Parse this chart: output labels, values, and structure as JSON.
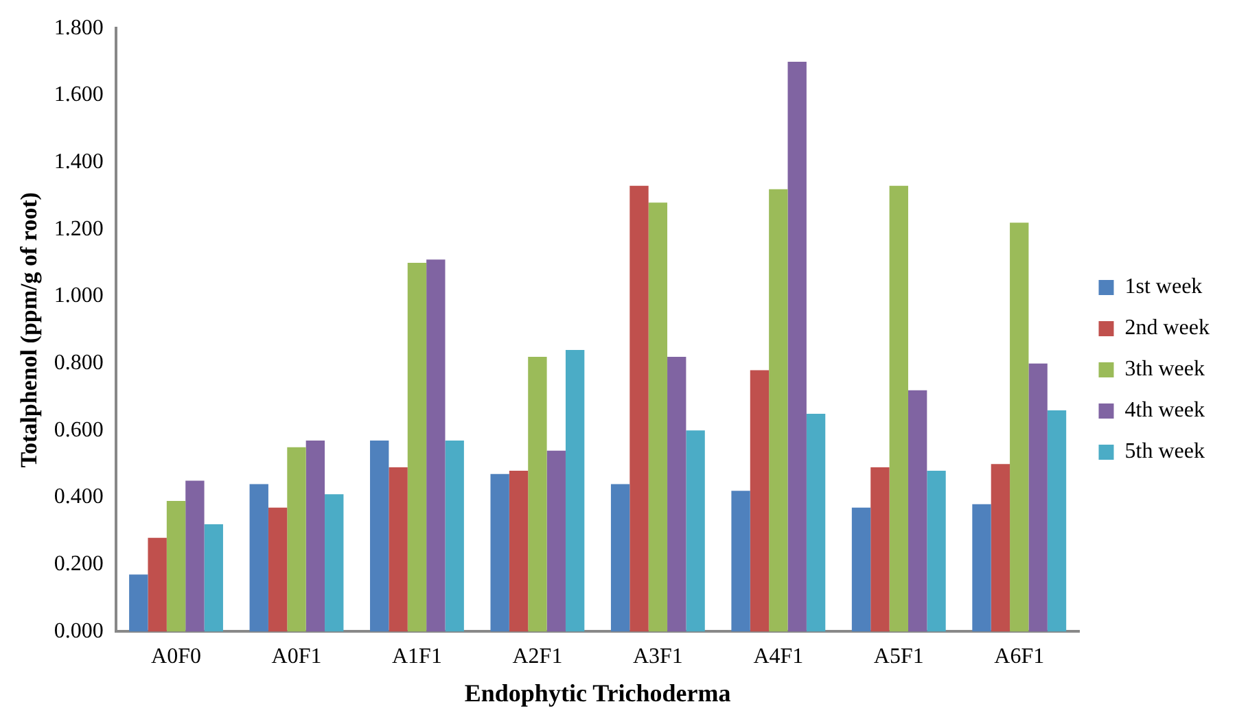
{
  "chart_data": {
    "type": "bar",
    "xlabel": "Endophytic Trichoderma",
    "ylabel": "Totalphenol (ppm/g of root)",
    "categories": [
      "A0F0",
      "A0F1",
      "A1F1",
      "A2F1",
      "A3F1",
      "A4F1",
      "A5F1",
      "A6F1"
    ],
    "series": [
      {
        "name": "1st week",
        "color": "#4f81bd",
        "values": [
          0.17,
          0.44,
          0.57,
          0.47,
          0.44,
          0.42,
          0.37,
          0.38
        ]
      },
      {
        "name": "2nd week",
        "color": "#c0504d",
        "values": [
          0.28,
          0.37,
          0.49,
          0.48,
          1.33,
          0.78,
          0.49,
          0.5
        ]
      },
      {
        "name": "3th week",
        "color": "#9bbb59",
        "values": [
          0.39,
          0.55,
          1.1,
          0.82,
          1.28,
          1.32,
          1.33,
          1.22
        ]
      },
      {
        "name": "4th week",
        "color": "#8064a2",
        "values": [
          0.45,
          0.57,
          1.11,
          0.54,
          0.82,
          1.7,
          0.72,
          0.8
        ]
      },
      {
        "name": "5th week",
        "color": "#4bacc6",
        "values": [
          0.32,
          0.41,
          0.57,
          0.84,
          0.6,
          0.65,
          0.48,
          0.66
        ]
      }
    ],
    "ylim": [
      0,
      1.8
    ],
    "yticks": [
      {
        "value": 0,
        "label": "0.000"
      },
      {
        "value": 0.2,
        "label": "0.200"
      },
      {
        "value": 0.4,
        "label": "0.400"
      },
      {
        "value": 0.6,
        "label": "0.600"
      },
      {
        "value": 0.8,
        "label": "0.800"
      },
      {
        "value": 1,
        "label": "1.000"
      },
      {
        "value": 1.2,
        "label": "1.200"
      },
      {
        "value": 1.4,
        "label": "1.400"
      },
      {
        "value": 1.6,
        "label": "1.600"
      },
      {
        "value": 1.8,
        "label": "1.800"
      }
    ],
    "grid": false,
    "legend": "right"
  }
}
